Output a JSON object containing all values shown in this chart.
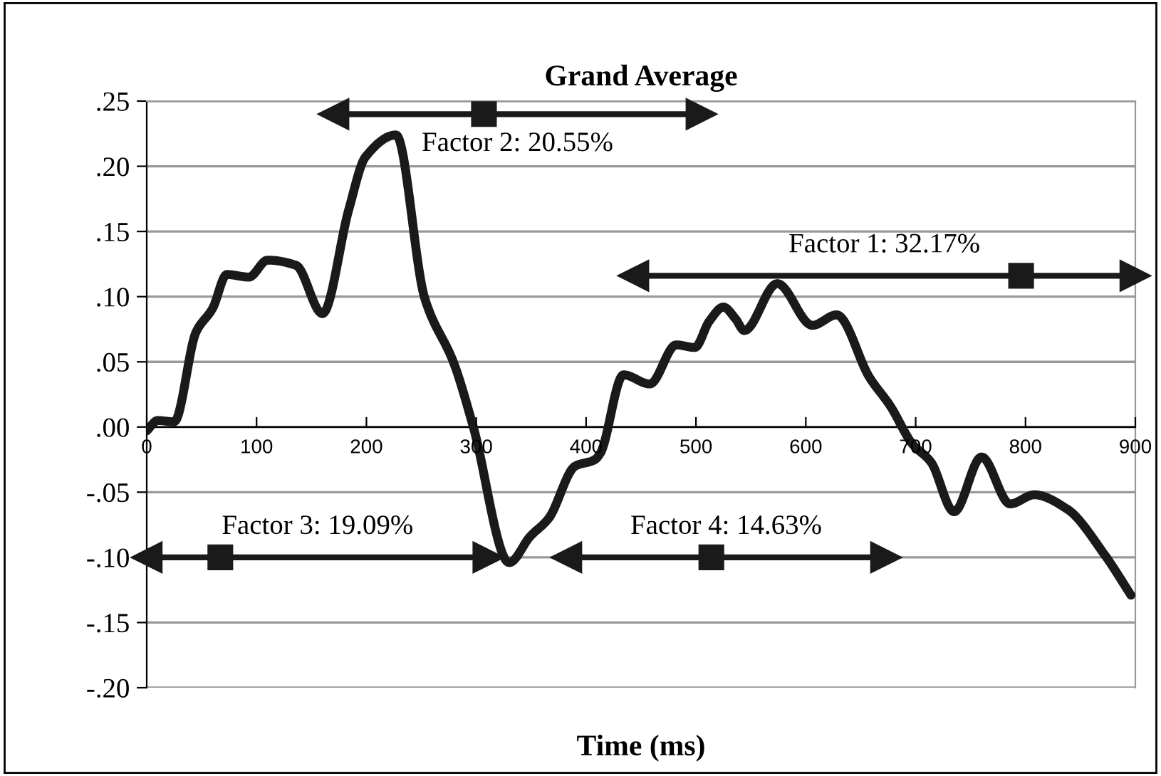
{
  "chart_data": {
    "type": "line",
    "title": "Grand Average",
    "xlabel": "Time (ms)",
    "x": [
      0,
      10,
      25,
      45,
      60,
      73,
      93,
      110,
      136,
      160,
      184,
      199,
      227,
      253,
      280,
      297,
      330,
      349,
      366,
      390,
      408,
      413,
      434,
      458,
      482,
      499,
      512,
      525,
      536,
      544,
      574,
      606,
      628,
      658,
      677,
      697,
      714,
      735,
      760,
      786,
      808,
      838,
      872,
      896
    ],
    "series": [
      {
        "color": "#1a1a1a",
        "values": [
          -0.003,
          0.005,
          0.004,
          0.073,
          0.091,
          0.117,
          0.115,
          0.128,
          0.124,
          0.087,
          0.167,
          0.207,
          0.224,
          0.099,
          0.048,
          0.001,
          -0.104,
          -0.084,
          -0.07,
          -0.03,
          -0.025,
          -0.02,
          0.04,
          0.033,
          0.063,
          0.061,
          0.081,
          0.092,
          0.083,
          0.074,
          0.11,
          0.078,
          0.086,
          0.038,
          0.016,
          -0.013,
          -0.027,
          -0.065,
          -0.023,
          -0.059,
          -0.052,
          -0.063,
          -0.098,
          -0.129
        ]
      },
      {
        "color": "#1a1a1a",
        "marker": "triangle",
        "x": [
          443,
          900
        ],
        "values": [
          0.116,
          0.116
        ]
      },
      {
        "color": "#1a1a1a",
        "marker": "triangle",
        "x": [
          170,
          505
        ],
        "values": [
          0.24,
          0.24
        ]
      },
      {
        "color": "#1a1a1a",
        "marker": "triangle",
        "x": [
          0,
          311
        ],
        "values": [
          -0.1,
          -0.1
        ]
      },
      {
        "color": "#1a1a1a",
        "marker": "triangle",
        "x": [
          382,
          673
        ],
        "values": [
          -0.1,
          -0.1
        ]
      }
    ],
    "xlim": [
      0,
      900
    ],
    "ylim": [
      -0.2,
      0.25
    ],
    "xticks": [
      0,
      100,
      200,
      300,
      400,
      500,
      600,
      700,
      800,
      900
    ],
    "yticks": [
      {
        "value": -0.2,
        "label": "-.20"
      },
      {
        "value": -0.15,
        "label": "-.15"
      },
      {
        "value": -0.1,
        "label": "-.10"
      },
      {
        "value": -0.05,
        "label": "-.05"
      },
      {
        "value": 0,
        "label": ".00"
      },
      {
        "value": 0.05,
        "label": ".05"
      },
      {
        "value": 0.1,
        "label": ".10"
      },
      {
        "value": 0.15,
        "label": ".15"
      },
      {
        "value": 0.2,
        "label": ".20"
      },
      {
        "value": 0.25,
        "label": ".25"
      }
    ],
    "grid": "y",
    "marker": "none",
    "line_style": "solid",
    "legend": false,
    "annotations": [
      {
        "text": "Factor 1: 32.17%",
        "x": 796,
        "y": 0.116
      },
      {
        "text": "Factor 2: 20.55%",
        "x": 307,
        "y": 0.24
      },
      {
        "text": "Factor 3: 19.09%",
        "x": 67,
        "y": -0.1
      },
      {
        "text": "Factor 4: 14.63%",
        "x": 514,
        "y": -0.1
      }
    ]
  }
}
